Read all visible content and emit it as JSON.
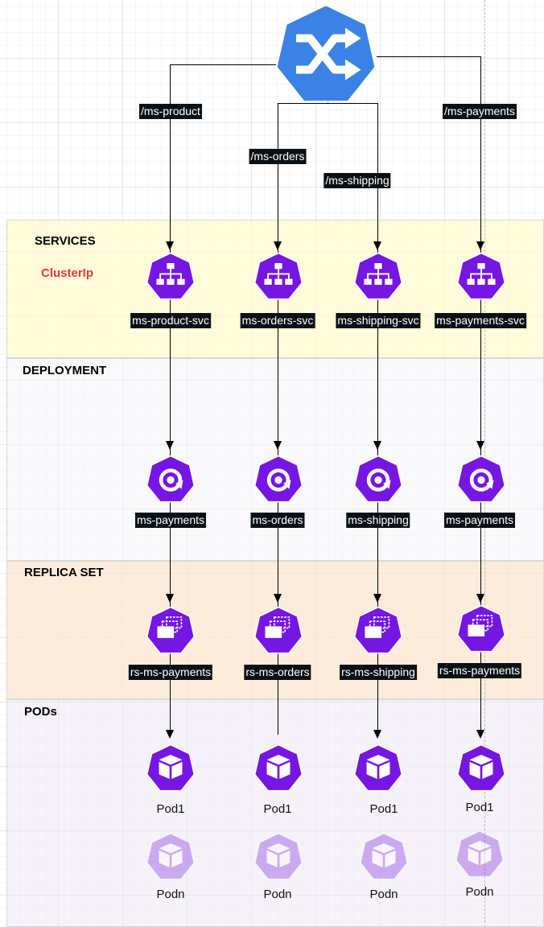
{
  "sections": {
    "services": "SERVICES",
    "services_sub": "ClusterIp",
    "deployment": "DEPLOYMENT",
    "replica_set": "REPLICA SET",
    "pods": "PODs"
  },
  "routes": [
    "/ms-product",
    "/ms-orders",
    "/ms-shipping",
    "/ms-payments"
  ],
  "services": [
    "ms-product-svc",
    "ms-orders-svc",
    "ms-shipping-svc",
    "ms-payments-svc"
  ],
  "deployments": [
    "ms-payments",
    "ms-orders",
    "ms-shipping",
    "ms-payments"
  ],
  "replica_sets": [
    "rs-ms-payments",
    "rs-ms-orders",
    "rs-ms-shipping",
    "rs-ms-payments"
  ],
  "pods_first": [
    "Pod1",
    "Pod1",
    "Pod1",
    "Pod1"
  ],
  "pods_last": [
    "Podn",
    "Podn",
    "Podn",
    "Podn"
  ],
  "icons": {
    "ingress": "shuffle-icon",
    "service": "k8s-service-icon",
    "deployment": "k8s-deployment-icon",
    "replica_set": "k8s-replicaset-icon",
    "pod": "k8s-pod-icon"
  },
  "colors": {
    "ingress": "#3b82e6",
    "k8s": "#7616e2",
    "label_bg": "#0a1116",
    "cluster_ip": "#e53935"
  }
}
